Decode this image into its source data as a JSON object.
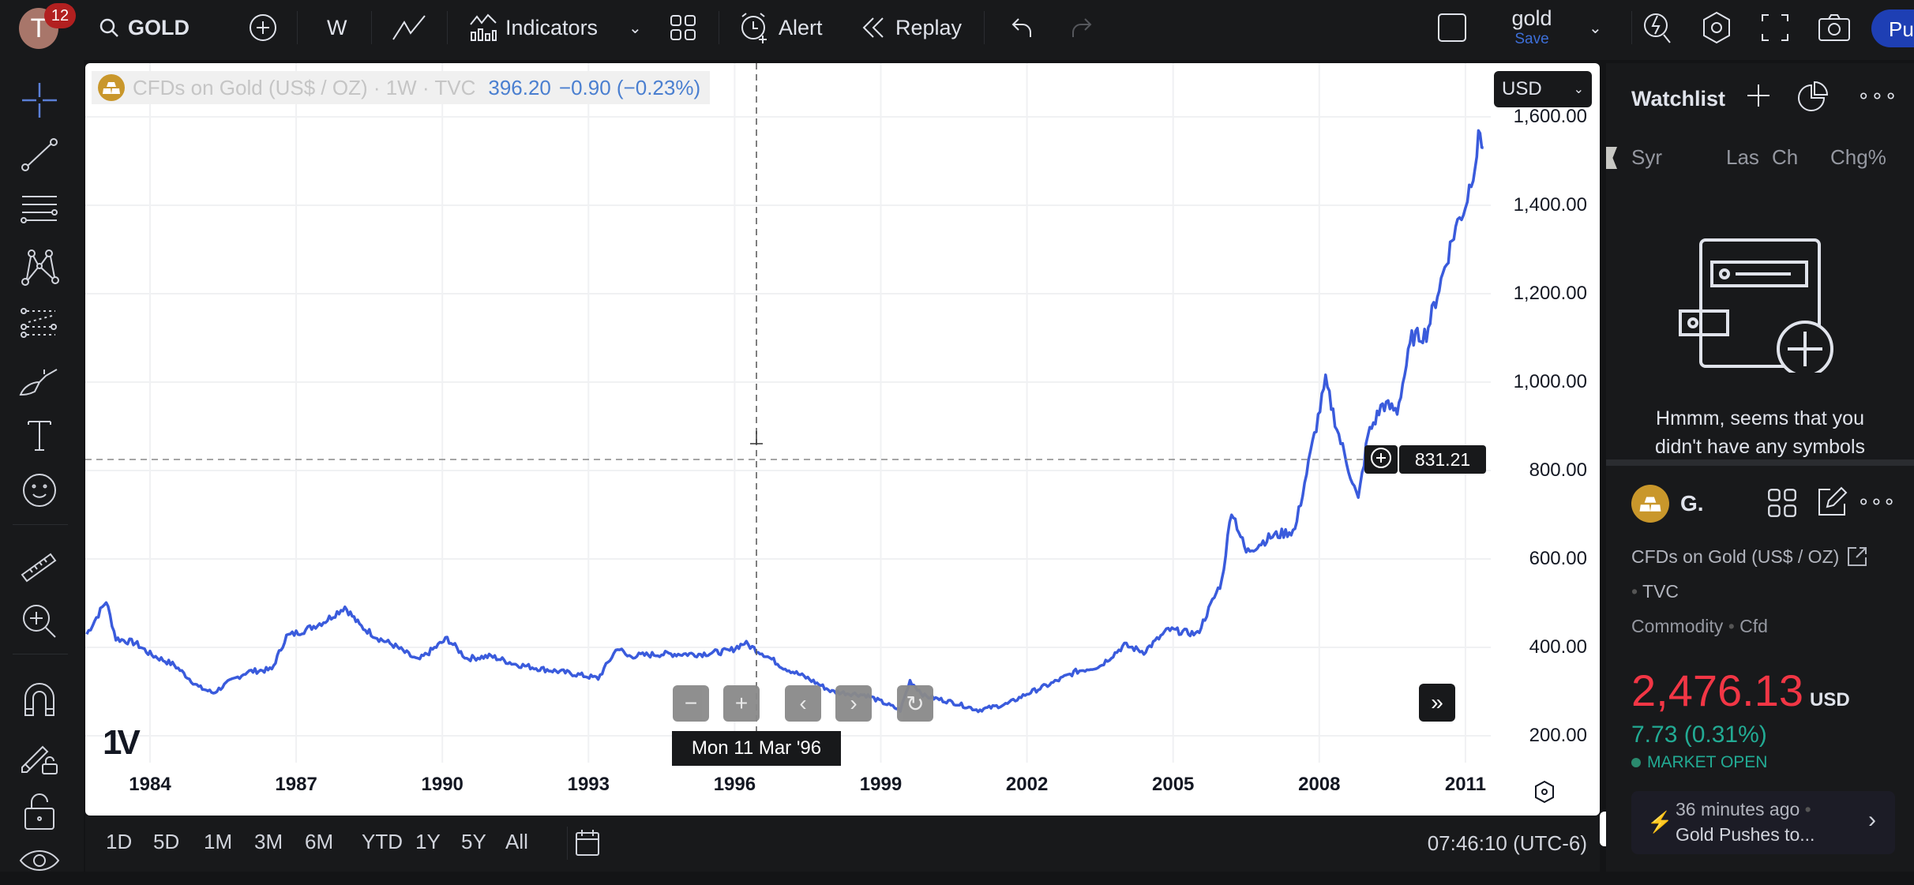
{
  "topbar": {
    "avatar_letter": "T",
    "notification_count": "12",
    "symbol": "GOLD",
    "interval": "W",
    "indicators_label": "Indicators",
    "alert_label": "Alert",
    "replay_label": "Replay",
    "layout_name": "gold",
    "save_label": "Save",
    "publish_label": "Pu"
  },
  "left_toolbar": [
    "crosshair-icon",
    "trend-line-icon",
    "fib-retracement-icon",
    "pattern-icon",
    "prediction-icon",
    "brush-icon",
    "text-icon",
    "emoji-icon",
    "ruler-icon",
    "zoom-in-icon",
    "magnet-icon",
    "lock-drawings-icon",
    "lock-icon",
    "eye-icon"
  ],
  "legend": {
    "title": "CFDs on Gold (US$ / OZ) · 1W · TVC",
    "price": "396.20",
    "change": "−0.90 (−0.23%)"
  },
  "currency": "USD",
  "crosshair": {
    "price_label": "831.21",
    "date_label": "Mon 11 Mar '96"
  },
  "colors": {
    "line": "#3a5bdc",
    "accent": "#2962ff",
    "down": "#f23645",
    "up": "#22ab94",
    "gold": "#c9972b"
  },
  "chart_data": {
    "type": "line",
    "x_ticks": [
      "1984",
      "1987",
      "1990",
      "1993",
      "1996",
      "1999",
      "2002",
      "2005",
      "2008",
      "2011"
    ],
    "y_ticks": [
      "200.00",
      "400.00",
      "600.00",
      "800.00",
      "1,000.00",
      "1,200.00",
      "1,400.00",
      "1,600.00"
    ],
    "ylim": [
      200,
      1600
    ],
    "xlim": [
      1982.7,
      2011.4
    ],
    "grid": true,
    "points": [
      [
        1982.7,
        430
      ],
      [
        1983.1,
        505
      ],
      [
        1983.3,
        420
      ],
      [
        1983.7,
        410
      ],
      [
        1984.0,
        385
      ],
      [
        1984.5,
        360
      ],
      [
        1985.0,
        310
      ],
      [
        1985.3,
        297
      ],
      [
        1985.6,
        320
      ],
      [
        1986.0,
        345
      ],
      [
        1986.5,
        350
      ],
      [
        1986.8,
        425
      ],
      [
        1987.2,
        440
      ],
      [
        1987.6,
        460
      ],
      [
        1988.0,
        492
      ],
      [
        1988.3,
        450
      ],
      [
        1988.7,
        420
      ],
      [
        1989.0,
        405
      ],
      [
        1989.5,
        370
      ],
      [
        1990.1,
        420
      ],
      [
        1990.5,
        375
      ],
      [
        1991.0,
        380
      ],
      [
        1991.5,
        362
      ],
      [
        1992.0,
        352
      ],
      [
        1992.6,
        342
      ],
      [
        1993.2,
        330
      ],
      [
        1993.6,
        400
      ],
      [
        1993.8,
        380
      ],
      [
        1994.5,
        385
      ],
      [
        1995.3,
        385
      ],
      [
        1995.9,
        392
      ],
      [
        1996.2,
        410
      ],
      [
        1996.6,
        385
      ],
      [
        1997.0,
        355
      ],
      [
        1997.5,
        330
      ],
      [
        1998.0,
        300
      ],
      [
        1998.7,
        292
      ],
      [
        1999.4,
        258
      ],
      [
        1999.6,
        324
      ],
      [
        1999.9,
        290
      ],
      [
        2000.5,
        275
      ],
      [
        2001.0,
        258
      ],
      [
        2001.6,
        272
      ],
      [
        2002.0,
        295
      ],
      [
        2002.5,
        318
      ],
      [
        2003.0,
        345
      ],
      [
        2003.5,
        358
      ],
      [
        2004.0,
        405
      ],
      [
        2004.4,
        390
      ],
      [
        2004.9,
        440
      ],
      [
        2005.5,
        430
      ],
      [
        2006.0,
        550
      ],
      [
        2006.2,
        712
      ],
      [
        2006.5,
        615
      ],
      [
        2007.0,
        650
      ],
      [
        2007.5,
        665
      ],
      [
        2007.9,
        880
      ],
      [
        2008.13,
        1000
      ],
      [
        2008.4,
        880
      ],
      [
        2008.8,
        732
      ],
      [
        2009.0,
        880
      ],
      [
        2009.3,
        950
      ],
      [
        2009.6,
        935
      ],
      [
        2009.9,
        1100
      ],
      [
        2010.2,
        1110
      ],
      [
        2010.5,
        1230
      ],
      [
        2010.8,
        1350
      ],
      [
        2011.0,
        1400
      ],
      [
        2011.2,
        1500
      ],
      [
        2011.3,
        1566
      ],
      [
        2011.37,
        1530
      ]
    ]
  },
  "nav_buttons": [
    "−",
    "+",
    "‹",
    "›",
    "↻"
  ],
  "bottom": {
    "ranges": [
      "1D",
      "5D",
      "1M",
      "3M",
      "6M",
      "YTD",
      "1Y",
      "5Y",
      "All"
    ],
    "time": "07:46:10 (UTC-6)"
  },
  "watchlist": {
    "title": "Watchlist",
    "columns": [
      "Syr",
      "Las",
      "Ch",
      "Chg%"
    ],
    "empty_text_1": "Hmmm, seems that you",
    "empty_text_2": "didn't have any symbols"
  },
  "details": {
    "symbol_short": "G.",
    "name": "CFDs on Gold (US$ / OZ)",
    "exchange": "TVC",
    "type": "Commodity",
    "subtype": "Cfd",
    "price": "2,476.13",
    "currency": "USD",
    "change": "7.73 (0.31%)",
    "status": "MARKET OPEN",
    "news_time": "36 minutes ago",
    "news_title": "Gold Pushes to..."
  }
}
